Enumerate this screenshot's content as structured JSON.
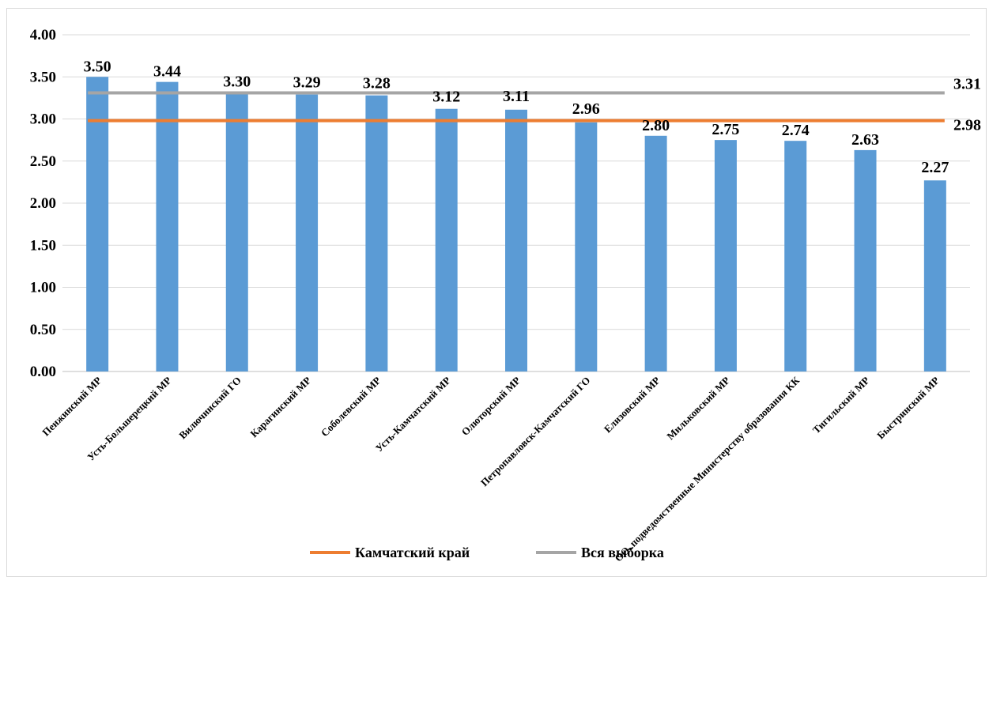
{
  "chart_data": {
    "type": "bar",
    "categories": [
      "Пенжинский МР",
      "Усть-Большерецкий МР",
      "Вилючинский ГО",
      "Карагинский МР",
      "Соболевский МР",
      "Усть-Камчатский МР",
      "Олюторский МР",
      "Петропавловск-Камчатский ГО",
      "Елизовский МР",
      "Мильковский МР",
      "ОО, подведомственные Министерству образования КК",
      "Тигильский МР",
      "Быстринский МР"
    ],
    "values": [
      3.5,
      3.44,
      3.3,
      3.29,
      3.28,
      3.12,
      3.11,
      2.96,
      2.8,
      2.75,
      2.74,
      2.63,
      2.27
    ],
    "value_labels": [
      "3.50",
      "3.44",
      "3.30",
      "3.29",
      "3.28",
      "3.12",
      "3.11",
      "2.96",
      "2.80",
      "2.75",
      "2.74",
      "2.63",
      "2.27"
    ],
    "bar_color": "#5b9bd5",
    "lines": [
      {
        "name": "Камчатский край",
        "value": 2.98,
        "label": "2.98",
        "color": "#ed7d31"
      },
      {
        "name": "Вся выборка",
        "value": 3.31,
        "label": "3.31",
        "color": "#a5a5a5"
      }
    ],
    "ylim": [
      0,
      4
    ],
    "yticks": [
      "0.00",
      "0.50",
      "1.00",
      "1.50",
      "2.00",
      "2.50",
      "3.00",
      "3.50",
      "4.00"
    ],
    "grid": true,
    "legend_position": "bottom",
    "title": "",
    "xlabel": "",
    "ylabel": ""
  }
}
